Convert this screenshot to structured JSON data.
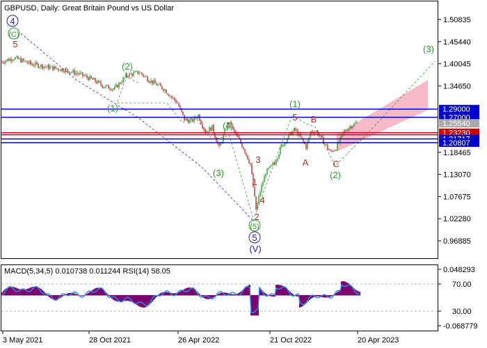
{
  "header": {
    "symbol": "GBPUSD",
    "timeframe": "Daily",
    "description": "Great Britain Pound vs US Dollar",
    "full_title": "GBPUSD, Daily:  Great Britain Pound vs US Dollar"
  },
  "colors": {
    "background": "#ffffff",
    "frame": "#000000",
    "bull_candle": "#2e9b2e",
    "bear_candle": "#b03030",
    "blue_line": "#0000cc",
    "red_line": "#cc0000",
    "wave_green": "#2e9b2e",
    "wave_red": "#b03030",
    "wave_purple": "#3020a0",
    "channel_fill": "#f7b3c0",
    "macd_hist": "#7d006f",
    "rsi_line": "#2a8ee8"
  },
  "chart_data": {
    "type": "candlestick",
    "price_axis_ticks": [
      "1.50835",
      "1.45440",
      "1.40045",
      "1.34650",
      "1.29000",
      "1.27000",
      "1.25540",
      "1.23230",
      "1.21717",
      "1.20807",
      "1.18465",
      "1.13070",
      "1.07675",
      "1.02280",
      "0.96885"
    ],
    "highlighted_levels": [
      {
        "label": "1.29000",
        "value": 1.29,
        "color": "#0000cc"
      },
      {
        "label": "1.27000",
        "value": 1.27,
        "color": "#0000cc"
      },
      {
        "label": "1.25540",
        "value": 1.2554,
        "color": "#aaaaaa"
      },
      {
        "label": "1.23230",
        "value": 1.2323,
        "color": "#cc0000"
      },
      {
        "label": "1.21717",
        "value": 1.21717,
        "color": "#0000cc"
      },
      {
        "label": "1.20807",
        "value": 1.20807,
        "color": "#0000cc"
      }
    ],
    "horizontal_lines": [
      {
        "value": 1.29,
        "color": "#0000cc"
      },
      {
        "value": 1.27,
        "color": "#0000cc"
      },
      {
        "value": 1.2323,
        "color": "#cc0000"
      },
      {
        "value": 1.2274,
        "color": "#cc0000"
      },
      {
        "value": 1.21717,
        "color": "#0000cc"
      },
      {
        "value": 1.20807,
        "color": "#0000cc"
      }
    ],
    "x_axis_labels": [
      "3 May 2021",
      "28 Oct 2021",
      "26 Apr 2022",
      "21 Oct 2022",
      "20 Apr 2023"
    ],
    "wave_labels": [
      {
        "text": "(C)",
        "style": "green-circle"
      },
      {
        "text": "4",
        "style": "purple-circle"
      },
      {
        "text": "5",
        "style": "red"
      },
      {
        "text": "(2)",
        "style": "green"
      },
      {
        "text": "(1)",
        "style": "green"
      },
      {
        "text": "(4)",
        "style": "green"
      },
      {
        "text": "(3)",
        "style": "green"
      },
      {
        "text": "3",
        "style": "red"
      },
      {
        "text": "4",
        "style": "red"
      },
      {
        "text": "2",
        "style": "red"
      },
      {
        "text": "1",
        "style": "red"
      },
      {
        "text": "(5)",
        "style": "green-circle"
      },
      {
        "text": "5",
        "style": "purple-circle"
      },
      {
        "text": "(V)",
        "style": "purple"
      },
      {
        "text": "(1)",
        "style": "green"
      },
      {
        "text": "5",
        "style": "red"
      },
      {
        "text": "B",
        "style": "red"
      },
      {
        "text": "A",
        "style": "red"
      },
      {
        "text": "C",
        "style": "red"
      },
      {
        "text": "(2)",
        "style": "green"
      },
      {
        "text": "(3)",
        "style": "green"
      }
    ],
    "indicator": {
      "label": "MACD(5,34,5) 0.010738 0.011244 RSI(14) 58.05",
      "macd_ticks": [
        "0.048293",
        "-0.068779"
      ],
      "rsi_ticks": [
        "70.00",
        "30.00"
      ]
    }
  }
}
